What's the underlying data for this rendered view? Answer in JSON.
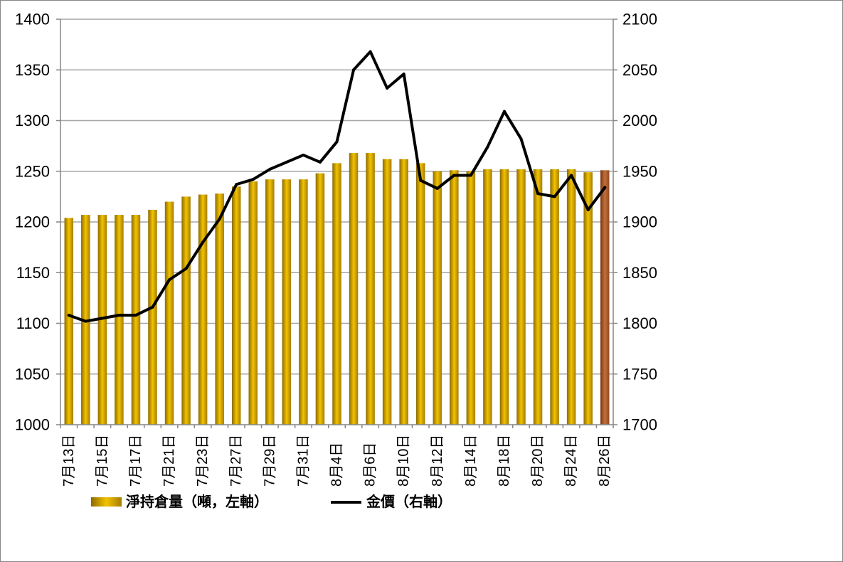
{
  "chart_data": {
    "type": "bar",
    "categories": [
      "7月13日",
      "",
      "7月15日",
      "",
      "7月17日",
      "",
      "7月21日",
      "",
      "7月23日",
      "",
      "7月27日",
      "",
      "7月29日",
      "",
      "7月31日",
      "",
      "8月4日",
      "",
      "8月6日",
      "",
      "8月10日",
      "",
      "8月12日",
      "",
      "8月14日",
      "",
      "8月18日",
      "",
      "8月20日",
      "",
      "8月24日",
      "",
      "8月26日"
    ],
    "series": [
      {
        "name": "淨持倉量（噸，左軸）",
        "type": "bar",
        "axis": "left",
        "color": "#e0b400",
        "gradient": [
          "#8c6a00",
          "#f2c300",
          "#a57d00"
        ],
        "highlight_last_bar": true,
        "highlight_gradient": [
          "#7a3515",
          "#c2703a",
          "#8e4a22"
        ],
        "values": [
          1204,
          1207,
          1207,
          1207,
          1207,
          1212,
          1220,
          1225,
          1227,
          1228,
          1235,
          1240,
          1242,
          1242,
          1242,
          1248,
          1258,
          1268,
          1268,
          1262,
          1262,
          1258,
          1250,
          1251,
          1250,
          1252,
          1252,
          1252,
          1252,
          1252,
          1252,
          1249,
          1251
        ]
      },
      {
        "name": "金價（右軸）",
        "type": "line",
        "axis": "right",
        "color": "#000000",
        "values": [
          1808,
          1802,
          1805,
          1808,
          1808,
          1816,
          1843,
          1854,
          1880,
          1903,
          1937,
          1942,
          1952,
          1959,
          1966,
          1959,
          1979,
          2050,
          2068,
          2032,
          2046,
          1941,
          1933,
          1946,
          1946,
          1974,
          2009,
          1982,
          1928,
          1925,
          1946,
          1912,
          1934
        ]
      }
    ],
    "y_left": {
      "min": 1000,
      "max": 1400,
      "ticks": [
        1000,
        1050,
        1100,
        1150,
        1200,
        1250,
        1300,
        1350,
        1400
      ]
    },
    "y_right": {
      "min": 1700,
      "max": 2100,
      "ticks": [
        1700,
        1750,
        1800,
        1850,
        1900,
        1950,
        2000,
        2050,
        2100
      ]
    },
    "grid": true,
    "legend": "bottom-left"
  }
}
